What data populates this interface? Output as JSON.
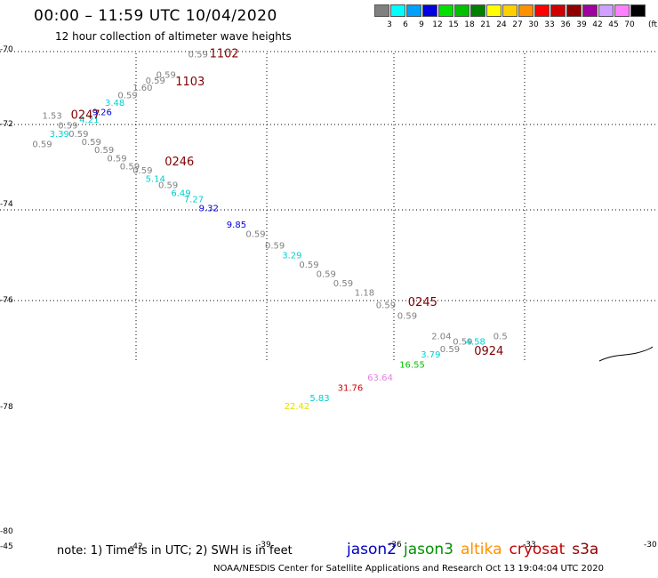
{
  "header": {
    "title": "00:00 – 11:59 UTC 10/04/2020",
    "subtitle": "12 hour collection of altimeter wave heights"
  },
  "scale": {
    "unit": "(ft)",
    "items": [
      {
        "label": "3",
        "color": "#808080"
      },
      {
        "label": "6",
        "color": "#00ffff"
      },
      {
        "label": "9",
        "color": "#00a0ff"
      },
      {
        "label": "12",
        "color": "#0000e0"
      },
      {
        "label": "15",
        "color": "#00e000"
      },
      {
        "label": "18",
        "color": "#00c000"
      },
      {
        "label": "21",
        "color": "#008000"
      },
      {
        "label": "24",
        "color": "#ffff00"
      },
      {
        "label": "27",
        "color": "#ffd000"
      },
      {
        "label": "30",
        "color": "#ff9000"
      },
      {
        "label": "33",
        "color": "#ff0000"
      },
      {
        "label": "36",
        "color": "#d00000"
      },
      {
        "label": "39",
        "color": "#900000"
      },
      {
        "label": "42",
        "color": "#a000a0"
      },
      {
        "label": "45",
        "color": "#d0a0ff"
      },
      {
        "label": "70",
        "color": "#ff80ff"
      },
      {
        "label": "",
        "color": "#000000"
      }
    ]
  },
  "axes": {
    "lat_labels": [
      "-70",
      "-72",
      "-74",
      "-76",
      "-78",
      "-80"
    ],
    "lon_labels": [
      "-45",
      "-42",
      "-39",
      "-36",
      "-33",
      "-30"
    ]
  },
  "chart_data": {
    "type": "scatter",
    "title": "00:00 – 11:59 UTC 10/04/2020",
    "subtitle": "12 hour collection of altimeter wave heights",
    "units": "ft",
    "points": [
      {
        "lon": -44.45,
        "lat": -72.55,
        "value": "0.59",
        "color": "#808080"
      },
      {
        "lon": -44.22,
        "lat": -71.85,
        "value": "1.53",
        "color": "#808080"
      },
      {
        "lon": -44.05,
        "lat": -72.3,
        "value": "3.39",
        "color": "#00d0d0"
      },
      {
        "lon": -43.85,
        "lat": -72.1,
        "value": "0.59",
        "color": "#808080"
      },
      {
        "lon": -43.6,
        "lat": -72.3,
        "value": "0.59",
        "color": "#808080"
      },
      {
        "lon": -43.35,
        "lat": -71.95,
        "value": "4.21",
        "color": "#00d0d0"
      },
      {
        "lon": -43.05,
        "lat": -71.75,
        "value": "9.26",
        "color": "#0000e0"
      },
      {
        "lon": -42.75,
        "lat": -71.5,
        "value": "3.48",
        "color": "#00d0d0"
      },
      {
        "lon": -42.45,
        "lat": -71.3,
        "value": "0.59",
        "color": "#808080"
      },
      {
        "lon": -42.1,
        "lat": -71.1,
        "value": "1.60",
        "color": "#808080"
      },
      {
        "lon": -41.8,
        "lat": -70.9,
        "value": "0.59",
        "color": "#808080"
      },
      {
        "lon": -41.55,
        "lat": -70.75,
        "value": "0.59",
        "color": "#808080"
      },
      {
        "lon": -40.8,
        "lat": -70.2,
        "value": "0.59",
        "color": "#808080"
      },
      {
        "lon": -43.3,
        "lat": -72.5,
        "value": "0.59",
        "color": "#808080"
      },
      {
        "lon": -43.0,
        "lat": -72.7,
        "value": "0.59",
        "color": "#808080"
      },
      {
        "lon": -42.7,
        "lat": -72.9,
        "value": "0.59",
        "color": "#808080"
      },
      {
        "lon": -42.4,
        "lat": -73.1,
        "value": "0.59",
        "color": "#808080"
      },
      {
        "lon": -42.1,
        "lat": -73.2,
        "value": "0.59",
        "color": "#808080"
      },
      {
        "lon": -41.8,
        "lat": -73.4,
        "value": "5.14",
        "color": "#00d0d0"
      },
      {
        "lon": -41.5,
        "lat": -73.55,
        "value": "0.59",
        "color": "#808080"
      },
      {
        "lon": -41.2,
        "lat": -73.75,
        "value": "6.49",
        "color": "#00d0d0"
      },
      {
        "lon": -40.9,
        "lat": -73.9,
        "value": "7.27",
        "color": "#00d0d0"
      },
      {
        "lon": -40.55,
        "lat": -74.1,
        "value": "9.32",
        "color": "#0000e0"
      },
      {
        "lon": -39.9,
        "lat": -74.45,
        "value": "9.85",
        "color": "#0000e0"
      },
      {
        "lon": -39.45,
        "lat": -74.65,
        "value": "0.59",
        "color": "#808080"
      },
      {
        "lon": -39.0,
        "lat": -74.9,
        "value": "0.59",
        "color": "#808080"
      },
      {
        "lon": -38.6,
        "lat": -75.1,
        "value": "3.29",
        "color": "#00d0d0"
      },
      {
        "lon": -38.2,
        "lat": -75.3,
        "value": "0.59",
        "color": "#808080"
      },
      {
        "lon": -37.8,
        "lat": -75.5,
        "value": "0.59",
        "color": "#808080"
      },
      {
        "lon": -37.4,
        "lat": -75.7,
        "value": "0.59",
        "color": "#808080"
      },
      {
        "lon": -36.9,
        "lat": -75.9,
        "value": "1.18",
        "color": "#808080"
      },
      {
        "lon": -36.4,
        "lat": -76.15,
        "value": "0.59",
        "color": "#808080"
      },
      {
        "lon": -35.9,
        "lat": -76.35,
        "value": "0.59",
        "color": "#808080"
      },
      {
        "lon": -35.1,
        "lat": -76.75,
        "value": "2.04",
        "color": "#808080"
      },
      {
        "lon": -34.9,
        "lat": -77.0,
        "value": "0.59",
        "color": "#808080"
      },
      {
        "lon": -34.6,
        "lat": -76.85,
        "value": "0.59",
        "color": "#808080"
      },
      {
        "lon": -34.3,
        "lat": -76.85,
        "value": "4.58",
        "color": "#00d0d0"
      },
      {
        "lon": -33.65,
        "lat": -76.75,
        "value": "0.5",
        "color": "#808080"
      },
      {
        "lon": -35.35,
        "lat": -77.1,
        "value": "3.79",
        "color": "#00d0d0"
      },
      {
        "lon": -35.85,
        "lat": -77.3,
        "value": "16.55",
        "color": "#00c000"
      },
      {
        "lon": -36.6,
        "lat": -77.55,
        "value": "63.64",
        "color": "#e080e0"
      },
      {
        "lon": -37.3,
        "lat": -77.75,
        "value": "31.76",
        "color": "#d00000"
      },
      {
        "lon": -37.95,
        "lat": -77.95,
        "value": "5.83",
        "color": "#00d0d0"
      },
      {
        "lon": -38.55,
        "lat": -78.1,
        "value": "22.42",
        "color": "#e0e000"
      }
    ],
    "time_labels": [
      {
        "text": "1102",
        "lon": -40.3,
        "lat": -70.2
      },
      {
        "text": "1103",
        "lon": -41.1,
        "lat": -70.95
      },
      {
        "text": "0247",
        "lon": -43.55,
        "lat": -71.85
      },
      {
        "text": "0246",
        "lon": -41.35,
        "lat": -73.0
      },
      {
        "text": "0245",
        "lon": -35.65,
        "lat": -76.1
      },
      {
        "text": "0924",
        "lon": -34.1,
        "lat": -77.05
      }
    ]
  },
  "notes": {
    "note_text": "note: 1) Time is in UTC; 2) SWH is in feet",
    "footer": "NOAA/NESDIS Center for Satellite Applications and Research   Oct 13 19:04:04 UTC 2020"
  },
  "satellites": [
    {
      "name": "jason2",
      "color": "#0000c0"
    },
    {
      "name": "jason3",
      "color": "#009000"
    },
    {
      "name": "altika",
      "color": "#ff9000"
    },
    {
      "name": "cryosat",
      "color": "#c00000"
    },
    {
      "name": "s3a",
      "color": "#900000"
    }
  ]
}
